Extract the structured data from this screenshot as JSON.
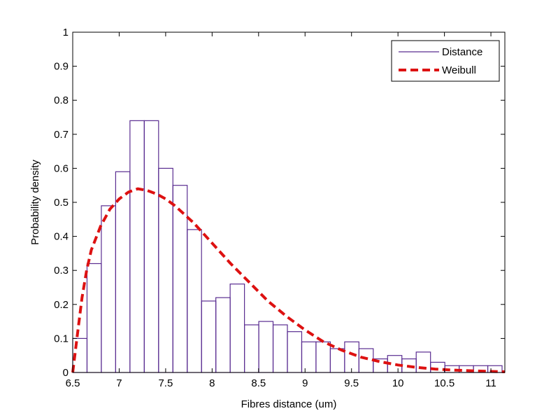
{
  "chart_data": {
    "type": "bar",
    "title": "",
    "xlabel": "Fibres distance (um)",
    "ylabel": "Probability density",
    "xlim": [
      6.5,
      11.15
    ],
    "ylim": [
      0,
      1
    ],
    "xticks": [
      "6.5",
      "7",
      "7.5",
      "8",
      "8.5",
      "9",
      "9.5",
      "10",
      "10.5",
      "11"
    ],
    "yticks": [
      "0",
      "0.1",
      "0.2",
      "0.3",
      "0.4",
      "0.5",
      "0.6",
      "0.7",
      "0.8",
      "0.9",
      "1"
    ],
    "grid": false,
    "legend": {
      "position": "top-right",
      "entries": [
        "Distance",
        "Weibull"
      ]
    },
    "colors": {
      "histogram": "#5a2d91",
      "weibull": "#dd1111",
      "axes": "#000000"
    },
    "series": [
      {
        "name": "Distance",
        "type": "histogram",
        "bin_edges": [
          6.5,
          6.654,
          6.808,
          6.962,
          7.116,
          7.27,
          7.424,
          7.578,
          7.732,
          7.886,
          8.04,
          8.194,
          8.348,
          8.502,
          8.656,
          8.81,
          8.964,
          9.118,
          9.272,
          9.426,
          9.58,
          9.734,
          9.888,
          10.042,
          10.196,
          10.35,
          10.504,
          10.658,
          10.812,
          10.966,
          11.12
        ],
        "values": [
          0.1,
          0.32,
          0.49,
          0.59,
          0.74,
          0.74,
          0.6,
          0.55,
          0.42,
          0.21,
          0.22,
          0.26,
          0.14,
          0.15,
          0.14,
          0.12,
          0.09,
          0.09,
          0.07,
          0.09,
          0.07,
          0.04,
          0.05,
          0.04,
          0.06,
          0.03,
          0.02,
          0.02,
          0.02,
          0.02
        ]
      },
      {
        "name": "Weibull",
        "type": "line",
        "style": "dashed",
        "x": [
          6.5,
          6.55,
          6.6,
          6.65,
          6.7,
          6.8,
          6.9,
          7.0,
          7.1,
          7.2,
          7.3,
          7.4,
          7.5,
          7.6,
          7.7,
          7.8,
          7.9,
          8.0,
          8.2,
          8.4,
          8.6,
          8.8,
          9.0,
          9.2,
          9.4,
          9.6,
          9.8,
          10.0,
          10.2,
          10.4,
          10.6,
          10.8,
          11.0,
          11.15
        ],
        "y": [
          0.0,
          0.11,
          0.22,
          0.3,
          0.36,
          0.43,
          0.48,
          0.51,
          0.53,
          0.54,
          0.535,
          0.525,
          0.51,
          0.49,
          0.465,
          0.44,
          0.41,
          0.38,
          0.32,
          0.265,
          0.21,
          0.165,
          0.125,
          0.09,
          0.065,
          0.045,
          0.032,
          0.022,
          0.015,
          0.01,
          0.007,
          0.005,
          0.003,
          0.002
        ]
      }
    ]
  }
}
